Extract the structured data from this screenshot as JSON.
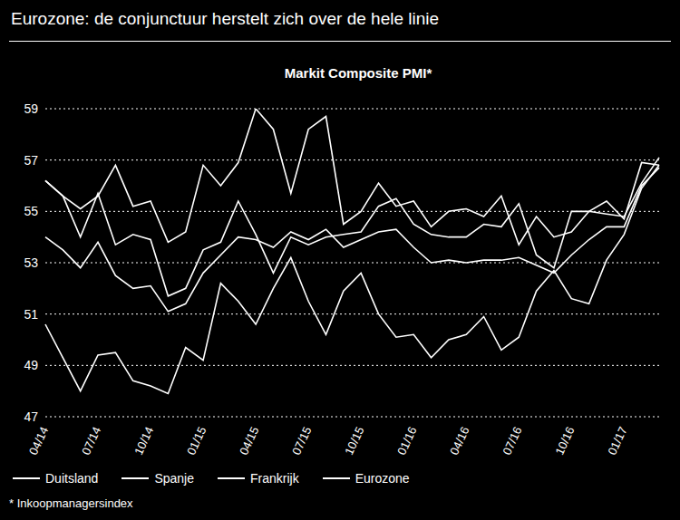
{
  "chart_data": {
    "type": "line",
    "title": "Eurozone: de conjunctuur herstelt zich over de hele linie",
    "subtitle": "Markit Composite PMI*",
    "footnote": "* Inkoopmanagersindex",
    "categories": [
      "04/14",
      null,
      null,
      "07/14",
      null,
      null,
      "10/14",
      null,
      null,
      "01/15",
      null,
      null,
      "04/15",
      null,
      null,
      "07/15",
      null,
      null,
      "10/15",
      null,
      null,
      "01/16",
      null,
      null,
      "04/16",
      null,
      null,
      "07/16",
      null,
      null,
      "10/16",
      null,
      null,
      "01/17",
      null,
      null
    ],
    "series": [
      {
        "name": "Duitsland",
        "color": "#ffffff",
        "values": [
          56.2,
          55.6,
          54.0,
          55.7,
          53.7,
          54.1,
          53.9,
          51.7,
          52.0,
          53.5,
          53.8,
          55.4,
          54.1,
          52.6,
          54.0,
          53.7,
          54.0,
          54.1,
          54.2,
          55.2,
          55.5,
          54.5,
          54.1,
          54.0,
          54.0,
          54.5,
          54.4,
          55.3,
          53.3,
          52.8,
          55.0,
          55.0,
          54.9,
          54.8,
          56.1,
          57.1
        ]
      },
      {
        "name": "Spanje",
        "color": "#ffffff",
        "values": [
          56.2,
          55.6,
          55.1,
          55.6,
          56.8,
          55.2,
          55.4,
          53.8,
          54.2,
          56.8,
          56.0,
          56.9,
          59.0,
          58.2,
          55.7,
          58.2,
          58.7,
          54.5,
          55.0,
          56.1,
          55.2,
          55.4,
          54.4,
          55.0,
          55.1,
          54.8,
          55.6,
          53.7,
          54.8,
          54.0,
          54.2,
          55.0,
          55.4,
          54.7,
          56.9,
          56.8
        ]
      },
      {
        "name": "Frankrijk",
        "color": "#ffffff",
        "values": [
          50.6,
          49.3,
          48.0,
          49.4,
          49.5,
          48.4,
          48.2,
          47.9,
          49.7,
          49.2,
          52.2,
          51.5,
          50.6,
          52.0,
          53.2,
          51.5,
          50.2,
          51.9,
          52.6,
          51.0,
          50.1,
          50.2,
          49.3,
          50.0,
          50.2,
          50.9,
          49.6,
          50.1,
          51.9,
          52.7,
          51.6,
          51.4,
          53.1,
          54.1,
          55.9,
          56.8
        ]
      },
      {
        "name": "Eurozone",
        "color": "#ffffff",
        "values": [
          54.0,
          53.5,
          52.8,
          53.8,
          52.5,
          52.0,
          52.1,
          51.1,
          51.4,
          52.6,
          53.3,
          54.0,
          53.9,
          53.6,
          54.2,
          53.9,
          54.3,
          53.6,
          53.9,
          54.2,
          54.3,
          53.6,
          53.0,
          53.1,
          53.0,
          53.1,
          53.1,
          53.2,
          52.9,
          52.6,
          53.3,
          53.9,
          54.4,
          54.4,
          56.0,
          56.7
        ]
      }
    ],
    "ylim": [
      47,
      59
    ],
    "yticks": [
      47,
      49,
      51,
      53,
      55,
      57,
      59
    ],
    "grid": true,
    "legend": "bottom"
  }
}
